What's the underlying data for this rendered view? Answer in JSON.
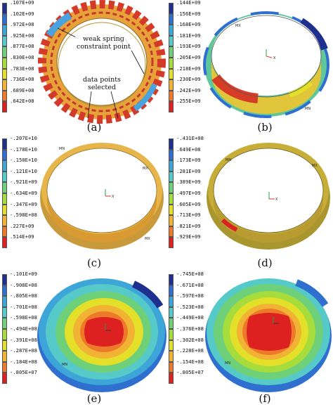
{
  "panels": [
    {
      "label": "(a)",
      "legend": [
        ".107E+09",
        ".102E+09",
        ".972E+08",
        ".925E+08",
        ".877E+08",
        ".830E+08",
        ".783E+08",
        ".736E+08",
        ".689E+08",
        ".642E+08"
      ],
      "annotations": {
        "weak_spring": "weak spring\nconstraint point",
        "data_points": "data points\nselected"
      }
    },
    {
      "label": "(b)",
      "legend": [
        ".144E+09",
        ".156E+09",
        ".168E+09",
        ".181E+09",
        ".193E+09",
        ".205E+09",
        ".218E+09",
        ".230E+09",
        ".242E+09",
        ".255E+09"
      ]
    },
    {
      "label": "(c)",
      "legend": [
        "-.207E+10",
        "-.178E+10",
        "-.150E+10",
        "-.121E+10",
        "-.921E+09",
        "-.634E+09",
        "-.347E+09",
        "-.598E+08",
        ".227E+09",
        ".514E+09"
      ]
    },
    {
      "label": "(d)",
      "legend": [
        "-.431E+08",
        ".649E+08",
        ".173E+09",
        ".281E+09",
        ".389E+09",
        ".497E+09",
        ".605E+09",
        ".713E+09",
        ".821E+09",
        ".929E+09"
      ]
    },
    {
      "label": "(e)",
      "legend": [
        "-.101E+09",
        "-.908E+08",
        "-.805E+08",
        "-.701E+08",
        "-.598E+08",
        "-.494E+08",
        "-.391E+08",
        "-.287E+08",
        "-.184E+08",
        "-.805E+07"
      ]
    },
    {
      "label": "(f)",
      "legend": [
        "-.745E+08",
        "-.671E+08",
        "-.597E+08",
        "-.523E+08",
        "-.449E+08",
        "-.376E+08",
        "-.302E+08",
        "-.228E+08",
        "-.154E+08",
        "-.805E+07"
      ]
    }
  ],
  "colors": {
    "scale": [
      "#1f2f8f",
      "#2f6fd0",
      "#3ea5d8",
      "#56c9c9",
      "#6fd07a",
      "#a6dc3c",
      "#e4e02a",
      "#f2b233",
      "#ec7a2a",
      "#dd2020"
    ],
    "ring_tan": "#c99a3c",
    "ring_dark": "#8a6a2a"
  }
}
